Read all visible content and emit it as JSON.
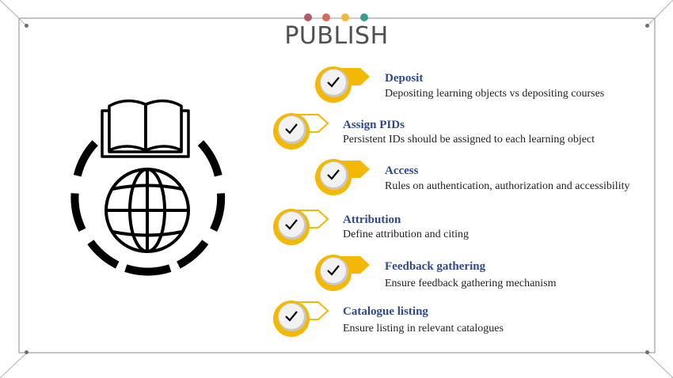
{
  "slide": {
    "title": "PUBLISH",
    "title_dot_colors": [
      "#b45a67",
      "#d86a58",
      "#f0b83a",
      "#3a9c8f"
    ],
    "accent_color": "#f5b800",
    "heading_color": "#2e4a8f"
  },
  "emblem": {
    "icons": [
      "open-book-icon",
      "globe-icon"
    ]
  },
  "items": [
    {
      "heading": "Deposit",
      "description": "Depositing learning objects vs  depositing courses",
      "icon": "checkmark-icon"
    },
    {
      "heading": "Assign PIDs",
      "description": "Persistent IDs should be assigned to each learning object",
      "icon": "checkmark-icon"
    },
    {
      "heading": "Access",
      "description": "Rules on authentication, authorization and accessibility",
      "icon": "checkmark-icon"
    },
    {
      "heading": "Attribution",
      "description": "Define attribution and citing",
      "icon": "checkmark-icon"
    },
    {
      "heading": "Feedback gathering",
      "description": "Ensure feedback gathering mechanism",
      "icon": "checkmark-icon"
    },
    {
      "heading": "Catalogue listing",
      "description": "Ensure listing in relevant catalogues",
      "icon": "checkmark-icon"
    }
  ]
}
